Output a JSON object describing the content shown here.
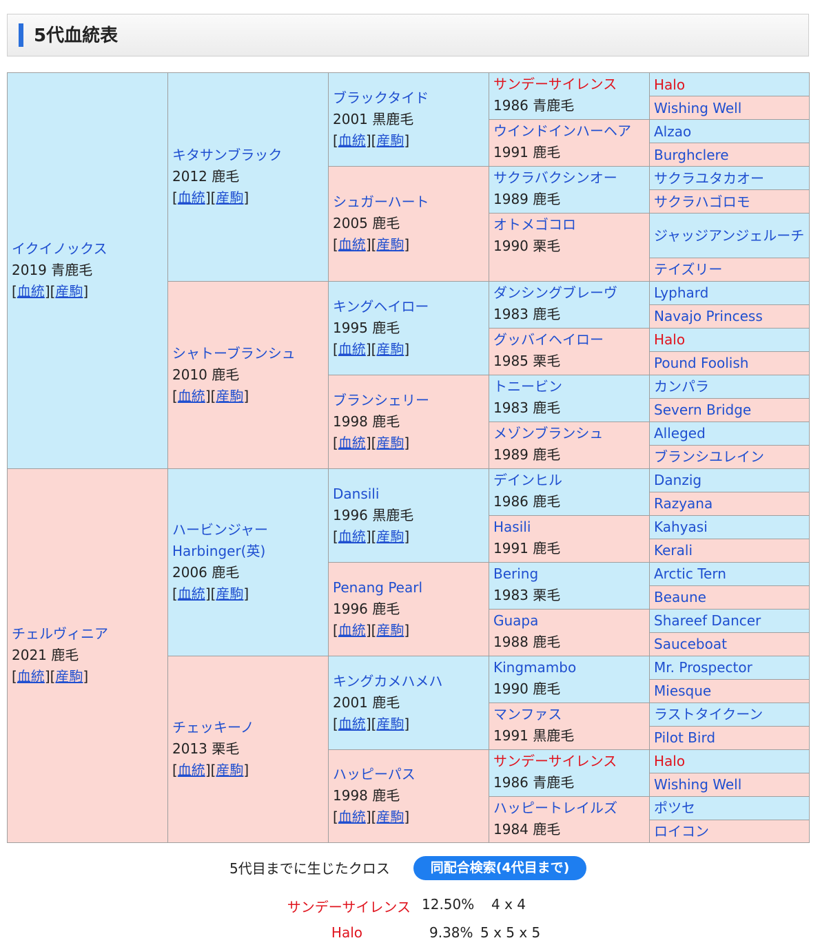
{
  "header": {
    "title": "5代血統表"
  },
  "link_labels": {
    "pedigree": "血統",
    "offspring": "産駒"
  },
  "pedigree": {
    "gen1": [
      {
        "name": "イクイノックス",
        "info": "2019 青鹿毛",
        "sex": "m"
      },
      {
        "name": "チェルヴィニア",
        "info": "2021 鹿毛",
        "sex": "f"
      }
    ],
    "gen2": [
      {
        "name": "キタサンブラック",
        "info": "2012 鹿毛",
        "sex": "m"
      },
      {
        "name": "シャトーブランシュ",
        "info": "2010 鹿毛",
        "sex": "f"
      },
      {
        "name": "ハービンジャー",
        "name2": "Harbinger(英)",
        "info": "2006 鹿毛",
        "sex": "m"
      },
      {
        "name": "チェッキーノ",
        "info": "2013 栗毛",
        "sex": "f"
      }
    ],
    "gen3": [
      {
        "name": "ブラックタイド",
        "info": "2001 黒鹿毛",
        "sex": "m"
      },
      {
        "name": "シュガーハート",
        "info": "2005 鹿毛",
        "sex": "f"
      },
      {
        "name": "キングヘイロー",
        "info": "1995 鹿毛",
        "sex": "m"
      },
      {
        "name": "ブランシェリー",
        "info": "1998 鹿毛",
        "sex": "f"
      },
      {
        "name": "Dansili",
        "info": "1996 黒鹿毛",
        "sex": "m"
      },
      {
        "name": "Penang Pearl",
        "info": "1996 鹿毛",
        "sex": "f"
      },
      {
        "name": "キングカメハメハ",
        "info": "2001 鹿毛",
        "sex": "m"
      },
      {
        "name": "ハッピーパス",
        "info": "1998 鹿毛",
        "sex": "f"
      }
    ],
    "gen4": [
      {
        "name": "サンデーサイレンス",
        "info": "1986 青鹿毛",
        "sex": "m",
        "cross": true
      },
      {
        "name": "ウインドインハーヘア",
        "info": "1991 鹿毛",
        "sex": "f"
      },
      {
        "name": "サクラバクシンオー",
        "info": "1989 鹿毛",
        "sex": "m"
      },
      {
        "name": "オトメゴコロ",
        "info": "1990 栗毛",
        "sex": "f"
      },
      {
        "name": "ダンシングブレーヴ",
        "info": "1983 鹿毛",
        "sex": "m"
      },
      {
        "name": "グッバイヘイロー",
        "info": "1985 栗毛",
        "sex": "f"
      },
      {
        "name": "トニービン",
        "info": "1983 鹿毛",
        "sex": "m"
      },
      {
        "name": "メゾンブランシュ",
        "info": "1989 鹿毛",
        "sex": "f"
      },
      {
        "name": "デインヒル",
        "info": "1986 鹿毛",
        "sex": "m"
      },
      {
        "name": "Hasili",
        "info": "1991 鹿毛",
        "sex": "f"
      },
      {
        "name": "Bering",
        "info": "1983 栗毛",
        "sex": "m"
      },
      {
        "name": "Guapa",
        "info": "1988 鹿毛",
        "sex": "f"
      },
      {
        "name": "Kingmambo",
        "info": "1990 鹿毛",
        "sex": "m"
      },
      {
        "name": "マンファス",
        "info": "1991 黒鹿毛",
        "sex": "f"
      },
      {
        "name": "サンデーサイレンス",
        "info": "1986 青鹿毛",
        "sex": "m",
        "cross": true
      },
      {
        "name": "ハッピートレイルズ",
        "info": "1984 鹿毛",
        "sex": "f"
      }
    ],
    "gen5": [
      {
        "name": "Halo",
        "sex": "m",
        "cross": true
      },
      {
        "name": "Wishing Well",
        "sex": "f"
      },
      {
        "name": "Alzao",
        "sex": "m"
      },
      {
        "name": "Burghclere",
        "sex": "f"
      },
      {
        "name": "サクラユタカオー",
        "sex": "m"
      },
      {
        "name": "サクラハゴロモ",
        "sex": "f"
      },
      {
        "name": "ジャッジアンジェルーチ",
        "sex": "m"
      },
      {
        "name": "テイズリー",
        "sex": "f"
      },
      {
        "name": "Lyphard",
        "sex": "m"
      },
      {
        "name": "Navajo Princess",
        "sex": "f"
      },
      {
        "name": "Halo",
        "sex": "m",
        "cross": true
      },
      {
        "name": "Pound Foolish",
        "sex": "f"
      },
      {
        "name": "カンパラ",
        "sex": "m"
      },
      {
        "name": "Severn Bridge",
        "sex": "f"
      },
      {
        "name": "Alleged",
        "sex": "m"
      },
      {
        "name": "ブランシユレイン",
        "sex": "f"
      },
      {
        "name": "Danzig",
        "sex": "m"
      },
      {
        "name": "Razyana",
        "sex": "f"
      },
      {
        "name": "Kahyasi",
        "sex": "m"
      },
      {
        "name": "Kerali",
        "sex": "f"
      },
      {
        "name": "Arctic Tern",
        "sex": "m"
      },
      {
        "name": "Beaune",
        "sex": "f"
      },
      {
        "name": "Shareef Dancer",
        "sex": "m"
      },
      {
        "name": "Sauceboat",
        "sex": "f"
      },
      {
        "name": "Mr. Prospector",
        "sex": "m"
      },
      {
        "name": "Miesque",
        "sex": "f"
      },
      {
        "name": "ラストタイクーン",
        "sex": "m"
      },
      {
        "name": "Pilot Bird",
        "sex": "f"
      },
      {
        "name": "Halo",
        "sex": "m",
        "cross": true
      },
      {
        "name": "Wishing Well",
        "sex": "f"
      },
      {
        "name": "ポツセ",
        "sex": "m"
      },
      {
        "name": "ロイコン",
        "sex": "f"
      }
    ]
  },
  "crosses": {
    "title": "5代目までに生じたクロス",
    "search_button": "同配合検索(4代目まで)",
    "items": [
      {
        "name": "サンデーサイレンス",
        "percent": "12.50%",
        "pattern": "4 x 4"
      },
      {
        "name": "Halo",
        "percent": "9.38%",
        "pattern": "5 x 5 x 5"
      }
    ]
  },
  "colors": {
    "male": "#c9ecfa",
    "female": "#fcd8d3",
    "link": "#1f4fd0",
    "cross": "#e0141e",
    "accent": "#2a6fdb",
    "button": "#1e7ef0"
  }
}
